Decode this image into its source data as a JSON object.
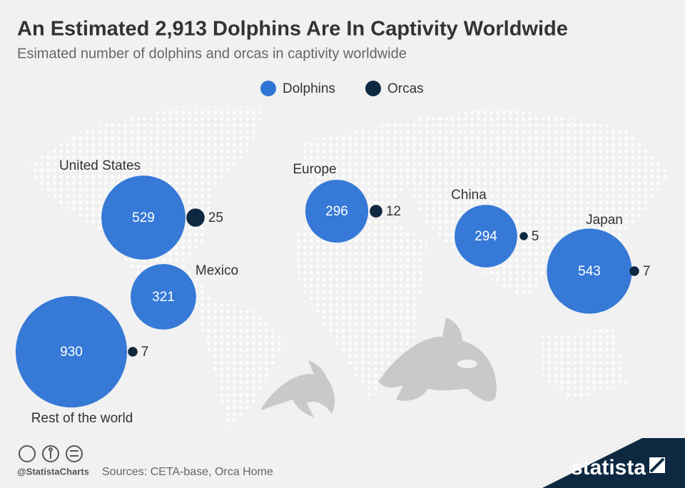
{
  "chart_data": {
    "type": "bubble",
    "title": "An Estimated 2,913 Dolphins Are In Captivity Worldwide",
    "subtitle": "Esimated number of dolphins and orcas in captivity worldwide",
    "categories": [
      "United States",
      "Mexico",
      "Europe",
      "China",
      "Japan",
      "Rest of the world"
    ],
    "series": [
      {
        "name": "Dolphins",
        "color": "#2f75d6",
        "values": [
          529,
          321,
          296,
          294,
          543,
          930
        ]
      },
      {
        "name": "Orcas",
        "color": "#0e2841",
        "values": [
          25,
          null,
          12,
          5,
          7,
          7
        ]
      }
    ]
  },
  "footer": {
    "handle": "@StatistaCharts",
    "source": "Sources: CETA-base, Orca Home",
    "brand": "statista"
  }
}
